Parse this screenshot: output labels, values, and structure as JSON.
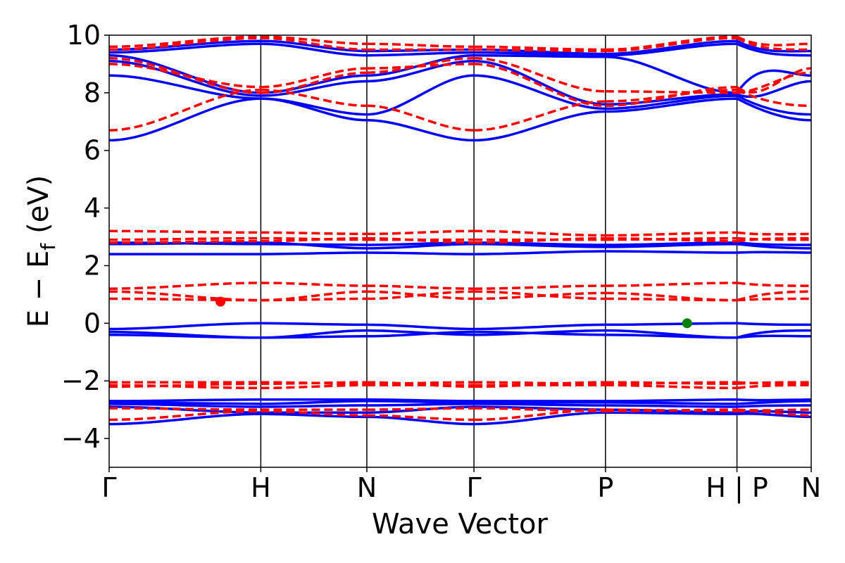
{
  "chart_data": {
    "type": "line",
    "title": "",
    "xlabel": "Wave Vector",
    "ylabel_parts": {
      "e": "E",
      "minus": "−",
      "ef": "E",
      "sub": "f",
      "unit": "(eV)"
    },
    "ylim": [
      -5,
      10
    ],
    "yticks": [
      -4,
      -2,
      0,
      2,
      4,
      6,
      8,
      10
    ],
    "ytick_labels": [
      "−4",
      "−2",
      "0",
      "2",
      "4",
      "6",
      "8",
      "10"
    ],
    "xlim": [
      0,
      6.62
    ],
    "kpoints": [
      {
        "label": "Γ",
        "x": 0
      },
      {
        "label": "H",
        "x": 1.43
      },
      {
        "label": "N",
        "x": 2.43
      },
      {
        "label": "Γ",
        "x": 3.44
      },
      {
        "label": "P",
        "x": 4.68
      },
      {
        "label": "H | P",
        "x": 5.92
      },
      {
        "label": "N",
        "x": 6.62
      }
    ],
    "colors": {
      "spin_up": "#0000ff",
      "spin_down": "#ff0000",
      "vbm": "#008000",
      "cbm": "#ff0000",
      "frame": "#000000"
    },
    "band_series": [
      {
        "style": "solid",
        "color": "#0000ff",
        "x": [
          0,
          1.43,
          2.43,
          3.44,
          4.68,
          5.92,
          5.92,
          6.62
        ],
        "bands": [
          [
            6.35,
            7.8,
            7.05,
            6.35,
            7.35,
            7.8,
            7.35,
            7.05
          ],
          [
            8.6,
            7.8,
            7.25,
            8.6,
            7.45,
            7.9,
            7.45,
            7.25
          ],
          [
            9.1,
            7.9,
            8.4,
            9.1,
            7.6,
            7.95,
            7.6,
            8.4
          ],
          [
            9.3,
            8.0,
            8.6,
            9.3,
            9.25,
            8.0,
            9.25,
            8.6
          ],
          [
            9.4,
            9.7,
            9.3,
            9.4,
            9.3,
            9.7,
            9.3,
            9.3
          ],
          [
            9.5,
            9.8,
            9.45,
            9.5,
            9.35,
            9.8,
            9.35,
            9.45
          ],
          [
            2.4,
            2.4,
            2.45,
            2.4,
            2.5,
            2.45,
            2.5,
            2.45
          ],
          [
            2.75,
            2.8,
            2.6,
            2.75,
            2.65,
            2.75,
            2.65,
            2.6
          ],
          [
            2.8,
            2.75,
            2.72,
            2.8,
            2.72,
            2.8,
            2.72,
            2.72
          ],
          [
            -0.2,
            0.0,
            -0.05,
            -0.2,
            -0.05,
            0.0,
            -0.05,
            -0.05
          ],
          [
            -0.4,
            -0.5,
            -0.25,
            -0.4,
            -0.25,
            -0.5,
            -0.25,
            -0.25
          ],
          [
            -0.3,
            -0.5,
            -0.45,
            -0.3,
            -0.4,
            -0.5,
            -0.4,
            -0.45
          ],
          [
            -3.5,
            -3.15,
            -3.25,
            -3.5,
            -3.1,
            -3.15,
            -3.1,
            -3.25
          ],
          [
            -2.9,
            -3.1,
            -3.1,
            -2.9,
            -3.0,
            -3.1,
            -3.0,
            -3.1
          ],
          [
            -2.75,
            -2.8,
            -2.7,
            -2.75,
            -2.75,
            -2.8,
            -2.75,
            -2.7
          ],
          [
            -2.7,
            -2.65,
            -2.65,
            -2.7,
            -2.7,
            -2.65,
            -2.7,
            -2.65
          ],
          [
            -2.8,
            -2.9,
            -2.85,
            -2.8,
            -2.85,
            -2.9,
            -2.85,
            -2.85
          ]
        ]
      },
      {
        "style": "dashed",
        "color": "#ff0000",
        "x": [
          0,
          1.43,
          2.43,
          3.44,
          4.68,
          5.92,
          5.92,
          6.62
        ],
        "bands": [
          [
            6.7,
            8.1,
            7.55,
            6.7,
            7.7,
            8.1,
            7.7,
            7.55
          ],
          [
            9.0,
            8.2,
            8.85,
            9.0,
            7.55,
            8.2,
            7.55,
            8.85
          ],
          [
            9.2,
            8.0,
            8.7,
            9.2,
            8.05,
            8.0,
            8.05,
            8.7
          ],
          [
            9.5,
            9.9,
            9.5,
            9.5,
            9.45,
            9.9,
            9.45,
            9.5
          ],
          [
            9.6,
            9.95,
            9.7,
            9.6,
            9.5,
            9.95,
            9.5,
            9.7
          ],
          [
            3.2,
            3.15,
            3.1,
            3.2,
            3.05,
            3.15,
            3.05,
            3.1
          ],
          [
            2.9,
            2.95,
            2.9,
            2.9,
            2.9,
            2.95,
            2.9,
            2.9
          ],
          [
            2.8,
            2.85,
            2.95,
            2.8,
            2.95,
            2.85,
            2.95,
            2.95
          ],
          [
            1.2,
            1.4,
            1.3,
            1.2,
            1.3,
            1.4,
            1.3,
            1.3
          ],
          [
            1.1,
            0.8,
            0.85,
            1.1,
            0.85,
            0.8,
            0.85,
            0.85
          ],
          [
            0.85,
            0.8,
            1.1,
            0.85,
            1.05,
            0.8,
            1.05,
            1.1
          ],
          [
            -2.05,
            -2.05,
            -2.1,
            -2.05,
            -2.1,
            -2.05,
            -2.1,
            -2.1
          ],
          [
            -2.15,
            -2.25,
            -2.15,
            -2.15,
            -2.15,
            -2.25,
            -2.15,
            -2.15
          ],
          [
            -2.2,
            -2.1,
            -2.05,
            -2.2,
            -2.05,
            -2.1,
            -2.05,
            -2.05
          ],
          [
            -3.35,
            -3.05,
            -3.2,
            -3.35,
            -3.0,
            -3.05,
            -3.0,
            -3.2
          ],
          [
            -2.95,
            -3.0,
            -3.0,
            -2.95,
            -3.05,
            -3.0,
            -3.05,
            -3.0
          ]
        ]
      }
    ],
    "markers": [
      {
        "name": "cbm",
        "x": 1.05,
        "y": 0.75,
        "color": "#ff0000"
      },
      {
        "name": "vbm",
        "x": 5.45,
        "y": 0.0,
        "color": "#008000"
      }
    ]
  }
}
